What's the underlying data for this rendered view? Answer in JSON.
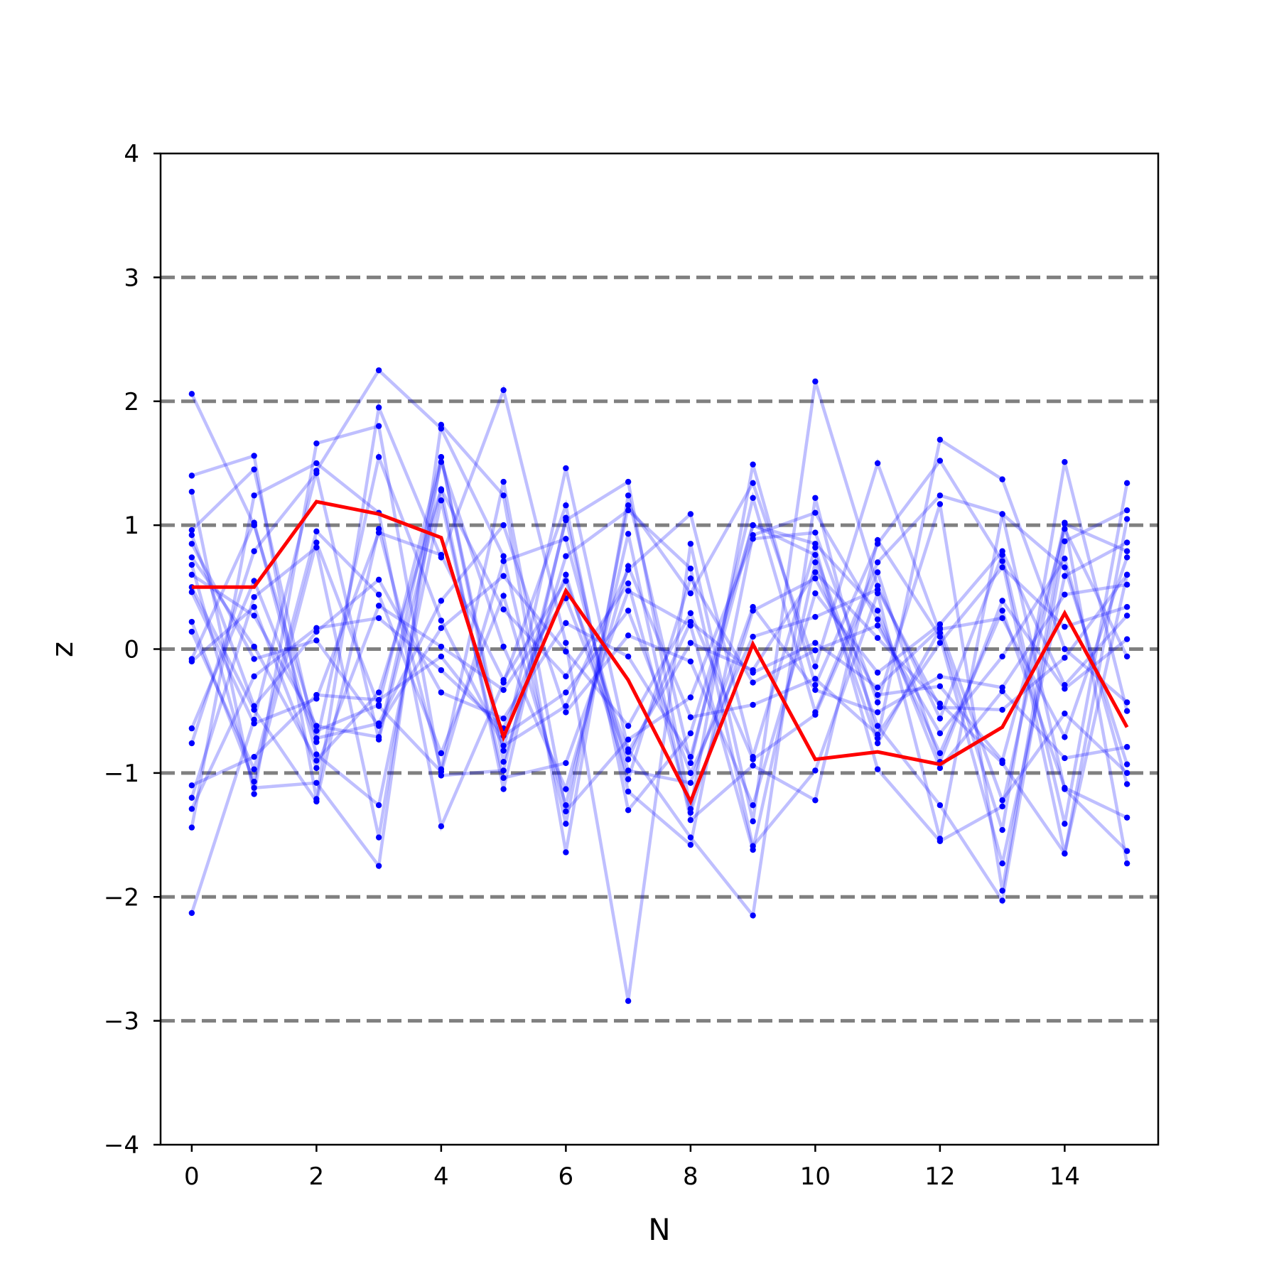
{
  "chart_data": {
    "type": "line",
    "xlabel": "N",
    "ylabel": "z",
    "xlim": [
      -0.5,
      15.5
    ],
    "ylim": [
      -4,
      4
    ],
    "xticks": [
      0,
      2,
      4,
      6,
      8,
      10,
      12,
      14
    ],
    "xtick_labels": [
      "0",
      "2",
      "4",
      "6",
      "8",
      "10",
      "12",
      "14"
    ],
    "yticks": [
      -4,
      -3,
      -2,
      -1,
      0,
      1,
      2,
      3,
      4
    ],
    "ytick_labels": [
      "−4",
      "−3",
      "−2",
      "−1",
      "0",
      "1",
      "2",
      "3",
      "4"
    ],
    "reference_lines": [
      -3,
      -2,
      -1,
      0,
      1,
      2,
      3
    ],
    "reference_line_color": "#808080",
    "background_color": "#ffffff",
    "x": [
      0,
      1,
      2,
      3,
      4,
      5,
      6,
      7,
      8,
      9,
      10,
      11,
      12,
      13,
      14,
      15
    ],
    "highlight_series": {
      "color": "#ff0000",
      "values": [
        0.5,
        0.5,
        1.19,
        1.09,
        0.9,
        -0.71,
        0.47,
        -0.25,
        -1.23,
        0.04,
        -0.89,
        -0.83,
        -0.93,
        -0.63,
        0.29,
        -0.63
      ]
    },
    "background_series_color": "#0000ff",
    "background_series_opacity": 0.25,
    "background_series": [
      {
        "values": [
          2.06,
          1.0,
          -0.66,
          -0.45,
          1.55,
          -0.82,
          1.46,
          -0.81,
          -1.52,
          -2.15,
          1.22,
          -0.72,
          1.69,
          1.37,
          0.0,
          -0.43
        ]
      },
      {
        "values": [
          -2.13,
          -0.57,
          1.44,
          2.25,
          1.78,
          0.75,
          -1.41,
          1.16,
          0.45,
          1.34,
          -0.14,
          1.5,
          0.13,
          -1.46,
          1.51,
          -0.5
        ]
      },
      {
        "values": [
          1.4,
          1.56,
          -1.21,
          1.95,
          0.74,
          2.09,
          0.05,
          -2.84,
          0.85,
          -1.39,
          2.16,
          0.51,
          -0.56,
          0.76,
          -1.41,
          1.34
        ]
      },
      {
        "values": [
          1.27,
          -1.17,
          1.66,
          1.8,
          -1.02,
          -0.98,
          1.04,
          1.35,
          -1.29,
          1.49,
          -0.29,
          0.85,
          1.52,
          0.71,
          -1.65,
          1.05
        ]
      },
      {
        "values": [
          0.96,
          1.45,
          -0.75,
          1.55,
          0.23,
          -0.78,
          -0.46,
          0.64,
          1.09,
          -0.87,
          0.82,
          -0.97,
          -1.55,
          -1.27,
          1.02,
          -1.73
        ]
      },
      {
        "values": [
          0.68,
          -1.12,
          -1.08,
          -1.75,
          1.81,
          1.24,
          -1.64,
          1.24,
          -0.92,
          1.22,
          -0.51,
          0.7,
          1.24,
          1.09,
          -1.13,
          -1.63
        ]
      },
      {
        "values": [
          -1.44,
          1.24,
          1.5,
          1.1,
          -1.43,
          -0.27,
          1.16,
          -1.3,
          -0.68,
          1.0,
          0.76,
          -0.62,
          -1.26,
          -2.03,
          0.87,
          1.12
        ]
      },
      {
        "values": [
          -1.2,
          0.42,
          0.82,
          -1.52,
          1.55,
          -0.91,
          0.75,
          1.12,
          0.65,
          -1.59,
          -0.98,
          0.45,
          -1.53,
          1.09,
          0.66,
          -0.93
        ]
      },
      {
        "values": [
          0.5,
          -0.49,
          -1.23,
          0.97,
          -0.97,
          1.35,
          -1.31,
          -0.73,
          -0.39,
          0.89,
          0.94,
          -0.43,
          1.17,
          -1.95,
          1.01,
          0.79
        ]
      },
      {
        "values": [
          -0.76,
          0.79,
          1.42,
          -0.73,
          1.28,
          -1.13,
          1.06,
          -1.15,
          -1.58,
          0.92,
          1.1,
          0.24,
          -0.84,
          0.31,
          -1.12,
          -1.36
        ]
      },
      {
        "values": [
          0.14,
          -0.97,
          0.95,
          0.44,
          -0.84,
          0.43,
          -1.26,
          0.93,
          -1.38,
          -0.94,
          -1.22,
          0.88,
          0.1,
          -1.73,
          0.59,
          0.86
        ]
      },
      {
        "values": [
          -0.08,
          1.02,
          -0.85,
          -1.26,
          1.2,
          -1.04,
          -0.92,
          0.47,
          0.19,
          -1.62,
          0.7,
          -0.76,
          0.16,
          0.25,
          -0.71,
          0.74
        ]
      },
      {
        "values": [
          0.22,
          -1.07,
          0.86,
          -0.46,
          -0.99,
          0.71,
          0.89,
          -0.98,
          -1.08,
          0.34,
          -0.33,
          -0.51,
          -0.22,
          -0.31,
          0.44,
          0.52
        ]
      },
      {
        "values": [
          0.46,
          -0.6,
          -0.4,
          0.94,
          0.76,
          -0.25,
          0.55,
          -0.83,
          0.05,
          -0.17,
          0.62,
          0.09,
          -0.44,
          -0.92,
          -1.65,
          0.6
        ]
      },
      {
        "values": [
          0.6,
          0.27,
          -0.62,
          -0.71,
          1.51,
          0.02,
          -1.13,
          0.67,
          -0.55,
          -0.45,
          -0.24,
          -0.69,
          0.05,
          0.66,
          0.18,
          0.34
        ]
      },
      {
        "values": [
          0.92,
          -0.46,
          0.14,
          0.56,
          -0.35,
          -0.56,
          0.21,
          -0.06,
          -0.87,
          1.0,
          0.85,
          0.31,
          -0.96,
          -0.34,
          -0.88,
          -0.79
        ]
      },
      {
        "values": [
          -0.64,
          0.55,
          -0.72,
          -0.6,
          0.39,
          1.0,
          -0.51,
          0.11,
          -0.1,
          -1.26,
          0.45,
          -0.19,
          0.2,
          0.79,
          -0.29,
          0.27
        ]
      },
      {
        "values": [
          -1.29,
          -0.22,
          0.17,
          0.25,
          -0.17,
          -0.64,
          0.6,
          -1.05,
          0.57,
          -0.27,
          -0.01,
          0.19,
          -0.68,
          -0.06,
          0.73,
          -1.09
        ]
      },
      {
        "values": [
          0.74,
          0.02,
          -0.9,
          -0.35,
          1.29,
          0.32,
          -0.22,
          0.53,
          -1.32,
          0.31,
          0.57,
          -0.37,
          -0.3,
          -0.9,
          0.97,
          -0.06
        ]
      },
      {
        "values": [
          -0.1,
          0.34,
          -0.96,
          0.35,
          0.02,
          -0.33,
          0.41,
          -0.89,
          0.22,
          -0.19,
          0.05,
          -0.31,
          0.17,
          -1.22,
          -0.52,
          -1.0
        ]
      },
      {
        "values": [
          -1.1,
          -0.87,
          -0.37,
          -0.41,
          -0.06,
          -0.7,
          -0.35,
          0.31,
          -1.0,
          0.1,
          0.26,
          0.48,
          -0.47,
          -0.49,
          -0.07,
          0.6
        ]
      },
      {
        "values": [
          0.85,
          -0.08,
          0.07,
          -0.62,
          0.17,
          0.59,
          -0.02,
          -0.62,
          0.29,
          -0.89,
          -0.53,
          0.62,
          -0.91,
          0.39,
          -0.32,
          0.08
        ]
      }
    ]
  }
}
